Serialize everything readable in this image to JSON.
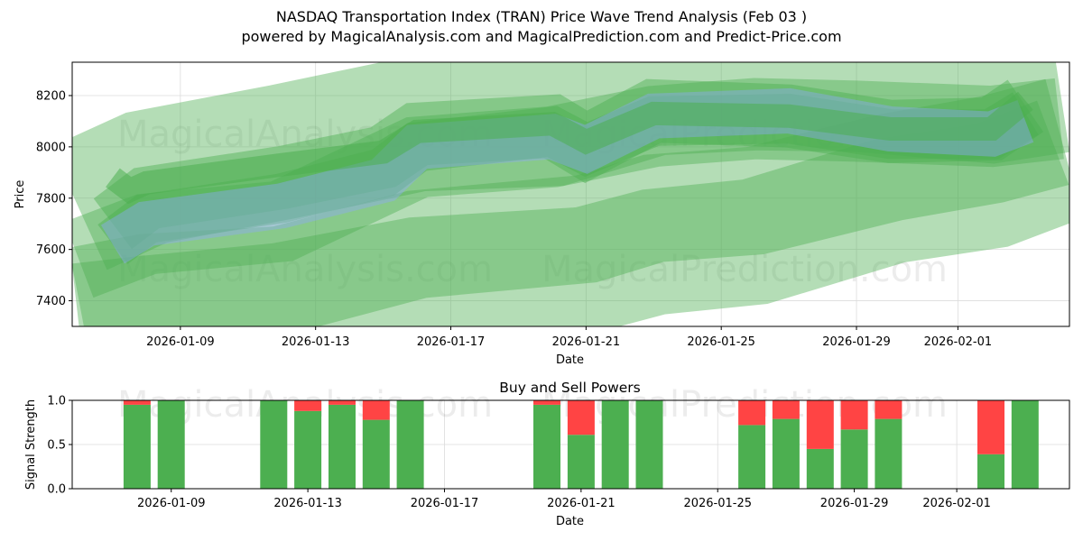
{
  "header": {
    "title_line1": "NASDAQ Transportation Index (TRAN) Price Wave Trend Analysis (Feb 03 )",
    "title_line2": "powered by MagicalAnalysis.com and MagicalPrediction.com and Predict-Price.com"
  },
  "watermarks": {
    "analysis": "MagicalAnalysis.com",
    "prediction": "MagicalPrediction.com"
  },
  "colors": {
    "band_green": "#4caf50",
    "band_blue": "#8fa8ff",
    "buy": "#4caf50",
    "sell": "#ff4444"
  },
  "chart_data": [
    {
      "type": "area",
      "title": "",
      "xlabel": "Date",
      "ylabel": "Price",
      "ylim": [
        7300,
        8330
      ],
      "yticks": [
        7400,
        7600,
        7800,
        8000,
        8200
      ],
      "xticks": [
        "2026-01-09",
        "2026-01-13",
        "2026-01-17",
        "2026-01-21",
        "2026-01-25",
        "2026-01-29",
        "2026-02-01"
      ],
      "x_start_day": 5.8,
      "x_end_day": 35.3,
      "grid": true,
      "series": [
        {
          "name": "upper-wide-band",
          "color": "green",
          "opacity": 0.42,
          "x": [
            6,
            8,
            12,
            16,
            20,
            23,
            26,
            29,
            33,
            35
          ],
          "y": [
            7760,
            7880,
            7980,
            8090,
            8110,
            8230,
            8250,
            8245,
            8200,
            8240
          ],
          "width": 150
        },
        {
          "name": "mid-band",
          "color": "green",
          "opacity": 0.42,
          "x": [
            6,
            8,
            12,
            16,
            20,
            23,
            26,
            29,
            33,
            35
          ],
          "y": [
            7560,
            7660,
            7710,
            7960,
            8000,
            8080,
            8110,
            8100,
            8080,
            8110
          ],
          "width": 90
        },
        {
          "name": "lower-band-1",
          "color": "green",
          "opacity": 0.42,
          "x": [
            6,
            8,
            12,
            16,
            21,
            23,
            26,
            30,
            33,
            35
          ],
          "y": [
            7400,
            7450,
            7480,
            7620,
            7680,
            7760,
            7790,
            7920,
            7990,
            8060
          ],
          "width": 120
        },
        {
          "name": "lower-band-2",
          "color": "green",
          "opacity": 0.42,
          "x": [
            6,
            8,
            12,
            16,
            21,
            23,
            26,
            30,
            33,
            35
          ],
          "y": [
            7300,
            7330,
            7380,
            7480,
            7520,
            7590,
            7630,
            7790,
            7850,
            7950
          ],
          "width": 140
        },
        {
          "name": "core-band-1",
          "color": "green",
          "opacity": 0.45,
          "x": [
            7,
            8,
            12,
            15,
            16,
            20,
            21,
            23,
            27,
            30,
            33,
            34
          ],
          "y": [
            7700,
            7800,
            7880,
            7960,
            8050,
            8080,
            8000,
            8140,
            8120,
            8060,
            8070,
            8160
          ],
          "width": 70
        },
        {
          "name": "core-band-2",
          "color": "green",
          "opacity": 0.45,
          "x": [
            7,
            8,
            12,
            15,
            16,
            20,
            21,
            23,
            27,
            30,
            33,
            34
          ],
          "y": [
            7620,
            7720,
            7800,
            7900,
            8000,
            8060,
            7990,
            8100,
            8110,
            8050,
            8050,
            8130
          ],
          "width": 55
        },
        {
          "name": "blue-band",
          "color": "blue",
          "opacity": 0.4,
          "x": [
            7,
            8,
            12,
            15,
            16,
            20,
            21,
            23,
            27,
            30,
            33,
            34
          ],
          "y": [
            7620,
            7700,
            7770,
            7870,
            8000,
            8040,
            7990,
            8120,
            8140,
            8070,
            8050,
            8100
          ],
          "width": 50
        },
        {
          "name": "green-line",
          "color": "green",
          "opacity": 0.55,
          "x": [
            7,
            7.5,
            8,
            12,
            15,
            16,
            20,
            21,
            23,
            27,
            30,
            33,
            34
          ],
          "y": [
            7880,
            7830,
            7860,
            7930,
            7980,
            8060,
            8090,
            8020,
            8130,
            8120,
            8070,
            8070,
            8180
          ],
          "width": 26
        }
      ]
    },
    {
      "type": "bar",
      "title": "Buy and Sell Powers",
      "xlabel": "Date",
      "ylabel": "Signal Strength",
      "ylim": [
        0,
        1
      ],
      "yticks": [
        "0.0",
        "0.5",
        "1.0"
      ],
      "xticks": [
        "2026-01-09",
        "2026-01-13",
        "2026-01-17",
        "2026-01-21",
        "2026-01-25",
        "2026-01-29",
        "2026-02-01"
      ],
      "x_start_day": 6.1,
      "x_end_day": 35.3,
      "series": [
        {
          "name": "buy",
          "x": [
            8,
            9,
            12,
            13,
            14,
            15,
            16,
            20,
            21,
            22,
            23,
            26,
            27,
            28,
            29,
            30,
            33,
            34
          ],
          "values": [
            0.95,
            1.0,
            1.0,
            0.88,
            0.95,
            0.78,
            1.0,
            0.95,
            0.61,
            1.0,
            1.0,
            0.72,
            0.79,
            0.45,
            0.67,
            0.79,
            0.39,
            1.0
          ]
        },
        {
          "name": "sell",
          "x": [
            8,
            9,
            12,
            13,
            14,
            15,
            16,
            20,
            21,
            22,
            23,
            26,
            27,
            28,
            29,
            30,
            33,
            34
          ],
          "values": [
            0.05,
            0.0,
            0.0,
            0.12,
            0.05,
            0.22,
            0.0,
            0.05,
            0.39,
            0.0,
            0.0,
            0.28,
            0.21,
            0.55,
            0.33,
            0.21,
            0.61,
            0.0
          ]
        }
      ]
    }
  ]
}
